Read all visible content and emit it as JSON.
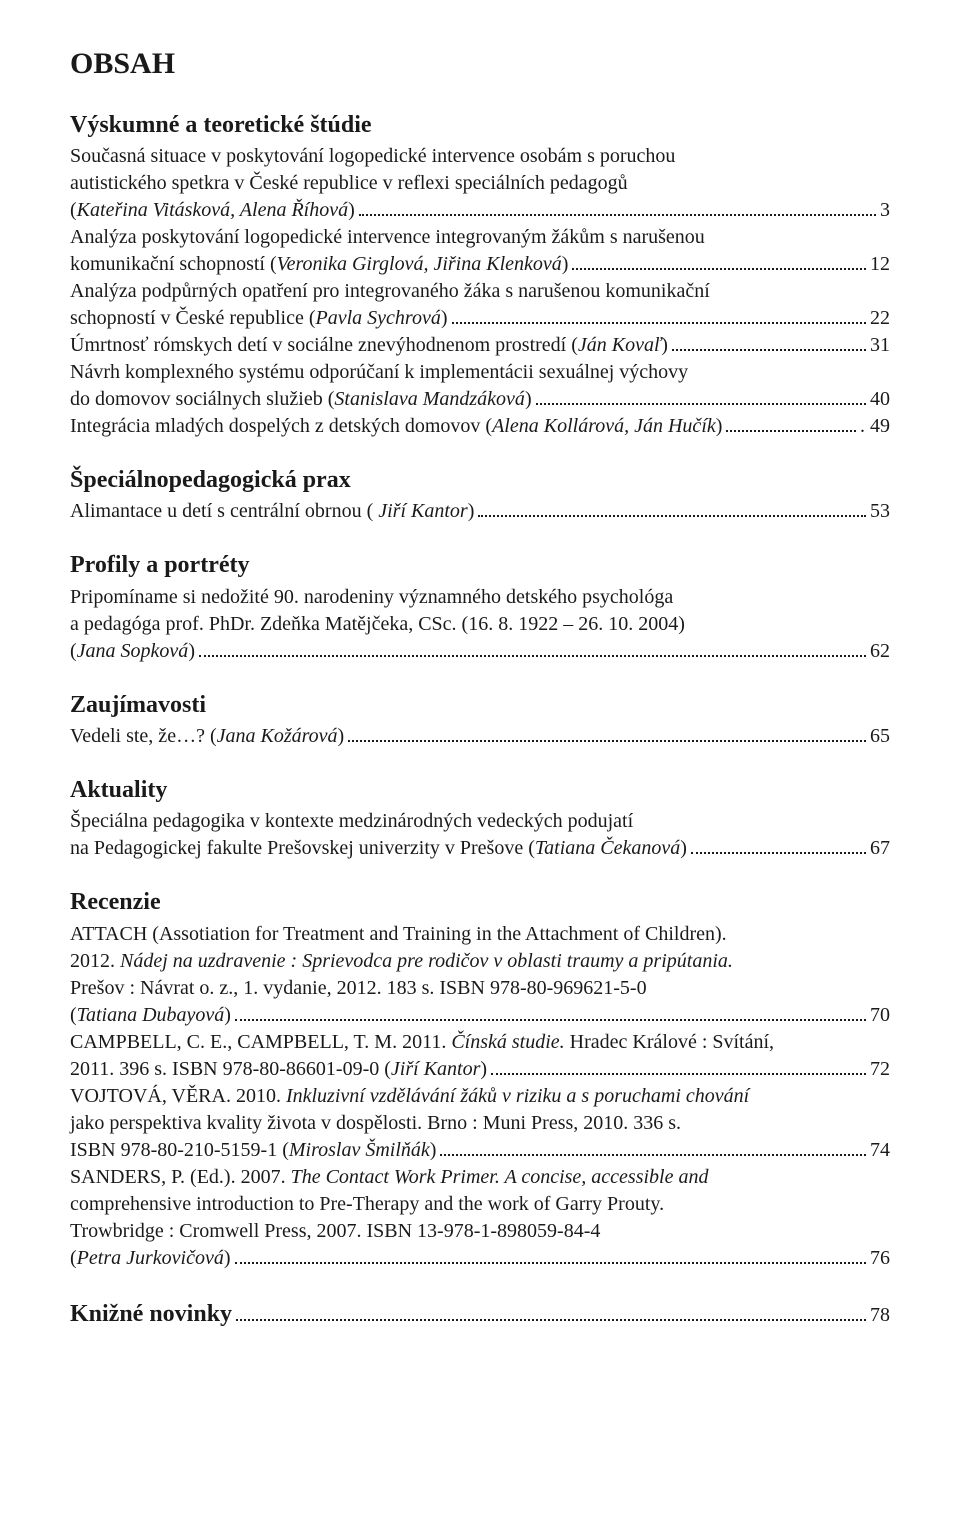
{
  "title": "OBSAH",
  "sections": [
    {
      "heading": "Výskumné a teoretické štúdie",
      "entries": [
        {
          "pre": "Současná situace v poskytování logopedické intervence osobám s poruchou\nautistického spetkra v České republice v reflexi speciálních pedagogů",
          "tail": "(<i>Kateřina Vitásková, Alena Říhová</i>)",
          "page": "3"
        },
        {
          "pre": "Analýza poskytování logopedické intervence integrovaným žákům  s narušenou",
          "tail": "komunikační schopností (<i>Veronika Girglová, Jiřina Klenková</i>)",
          "page": "12"
        },
        {
          "pre": "Analýza podpůrných opatření pro integrovaného žáka  s narušenou komunikační",
          "tail": "schopností v České republice (<i>Pavla Sychrová</i>)",
          "page": "22"
        },
        {
          "pre": "",
          "tail": "Úmrtnosť rómskych detí v sociálne znevýhodnenom prostredí (<i>Ján Kovaľ</i>)",
          "page": " 31"
        },
        {
          "pre": "Návrh komplexného systému odporúčaní k implementácii sexuálnej výchovy",
          "tail": "do domovov sociálnych služieb (<i>Stanislava Mandzáková</i>)",
          "page": " 40"
        },
        {
          "pre": "",
          "tail": "Integrácia mladých dospelých z detských domovov (<i>Alena Kollárová, Ján Hučík</i>)",
          "page": ". 49"
        }
      ]
    },
    {
      "heading": "Špeciálnopedagogická prax",
      "entries": [
        {
          "pre": "",
          "tail": "Alimantace u detí s centrální obrnou ( <i>Jiří Kantor</i>)",
          "page": "53"
        }
      ]
    },
    {
      "heading": "Profily a portréty",
      "entries": [
        {
          "pre": "Pripomíname si nedožité 90. narodeniny významného detského psychológa\na pedagóga prof. PhDr. Zdeňka Matějčeka, CSc. (16. 8. 1922 – 26. 10. 2004)",
          "tail": "(<i>Jana Sopková</i>)",
          "page": " 62"
        }
      ]
    },
    {
      "heading": "Zaujímavosti",
      "entries": [
        {
          "pre": "",
          "tail": "Vedeli ste, že…? (<i>Jana Kožárová</i>)",
          "page": " 65"
        }
      ]
    },
    {
      "heading": "Aktuality",
      "entries": [
        {
          "pre": "Špeciálna pedagogika v kontexte medzinárodných vedeckých podujatí",
          "tail": "na Pedagogickej fakulte Prešovskej univerzity v Prešove (<i>Tatiana Čekanová</i>)",
          "page": " 67"
        }
      ]
    },
    {
      "heading": "Recenzie",
      "entries": [
        {
          "pre": "ATTACH (Assotiation for Treatment and Training in the Attachment of Children).\n2012. <i>Nádej na uzdravenie : Sprievodca pre rodičov v oblasti traumy a pripútania.</i>\nPrešov : Návrat o. z., 1. vydanie, 2012. 183 s. ISBN 978-80-969621-5-0",
          "tail": "(<i>Tatiana Dubayová</i>)",
          "page": " 70"
        },
        {
          "pre": "CAMPBELL, C. E., CAMPBELL, T. M. 2011. <i>Čínská studie.</i> Hradec Králové : Svítání,",
          "tail": "2011. 396 s. ISBN 978-80-86601-09-0 (<i>Jiří Kantor</i>)",
          "page": " 72"
        },
        {
          "pre": "VOJTOVÁ, VĚRA. 2010. <i>Inkluzivní vzdělávání  žáků v riziku a s poruchami chování\njako perspektiva kvality života v dospělosti.</i> Brno : Muni Press, 2010. 336 s.",
          "tail": "ISBN 978-80-210-5159-1 (<i>Miroslav Šmilňák</i>)",
          "page": "74"
        },
        {
          "pre": "SANDERS, P. (Ed.). 2007. <i>The Contact Work Primer. A concise, accessible and\ncomprehensive introduction to Pre-Therapy and the work of Garry Prouty.</i>\nTrowbridge : Cromwell Press, 2007. ISBN 13-978-1-898059-84-4",
          "tail": "(<i>Petra Jurkovičová</i>)",
          "page": " 76"
        }
      ]
    },
    {
      "heading": "Knižné novinky",
      "heading_is_leader": true,
      "heading_page": "78",
      "entries": []
    }
  ]
}
